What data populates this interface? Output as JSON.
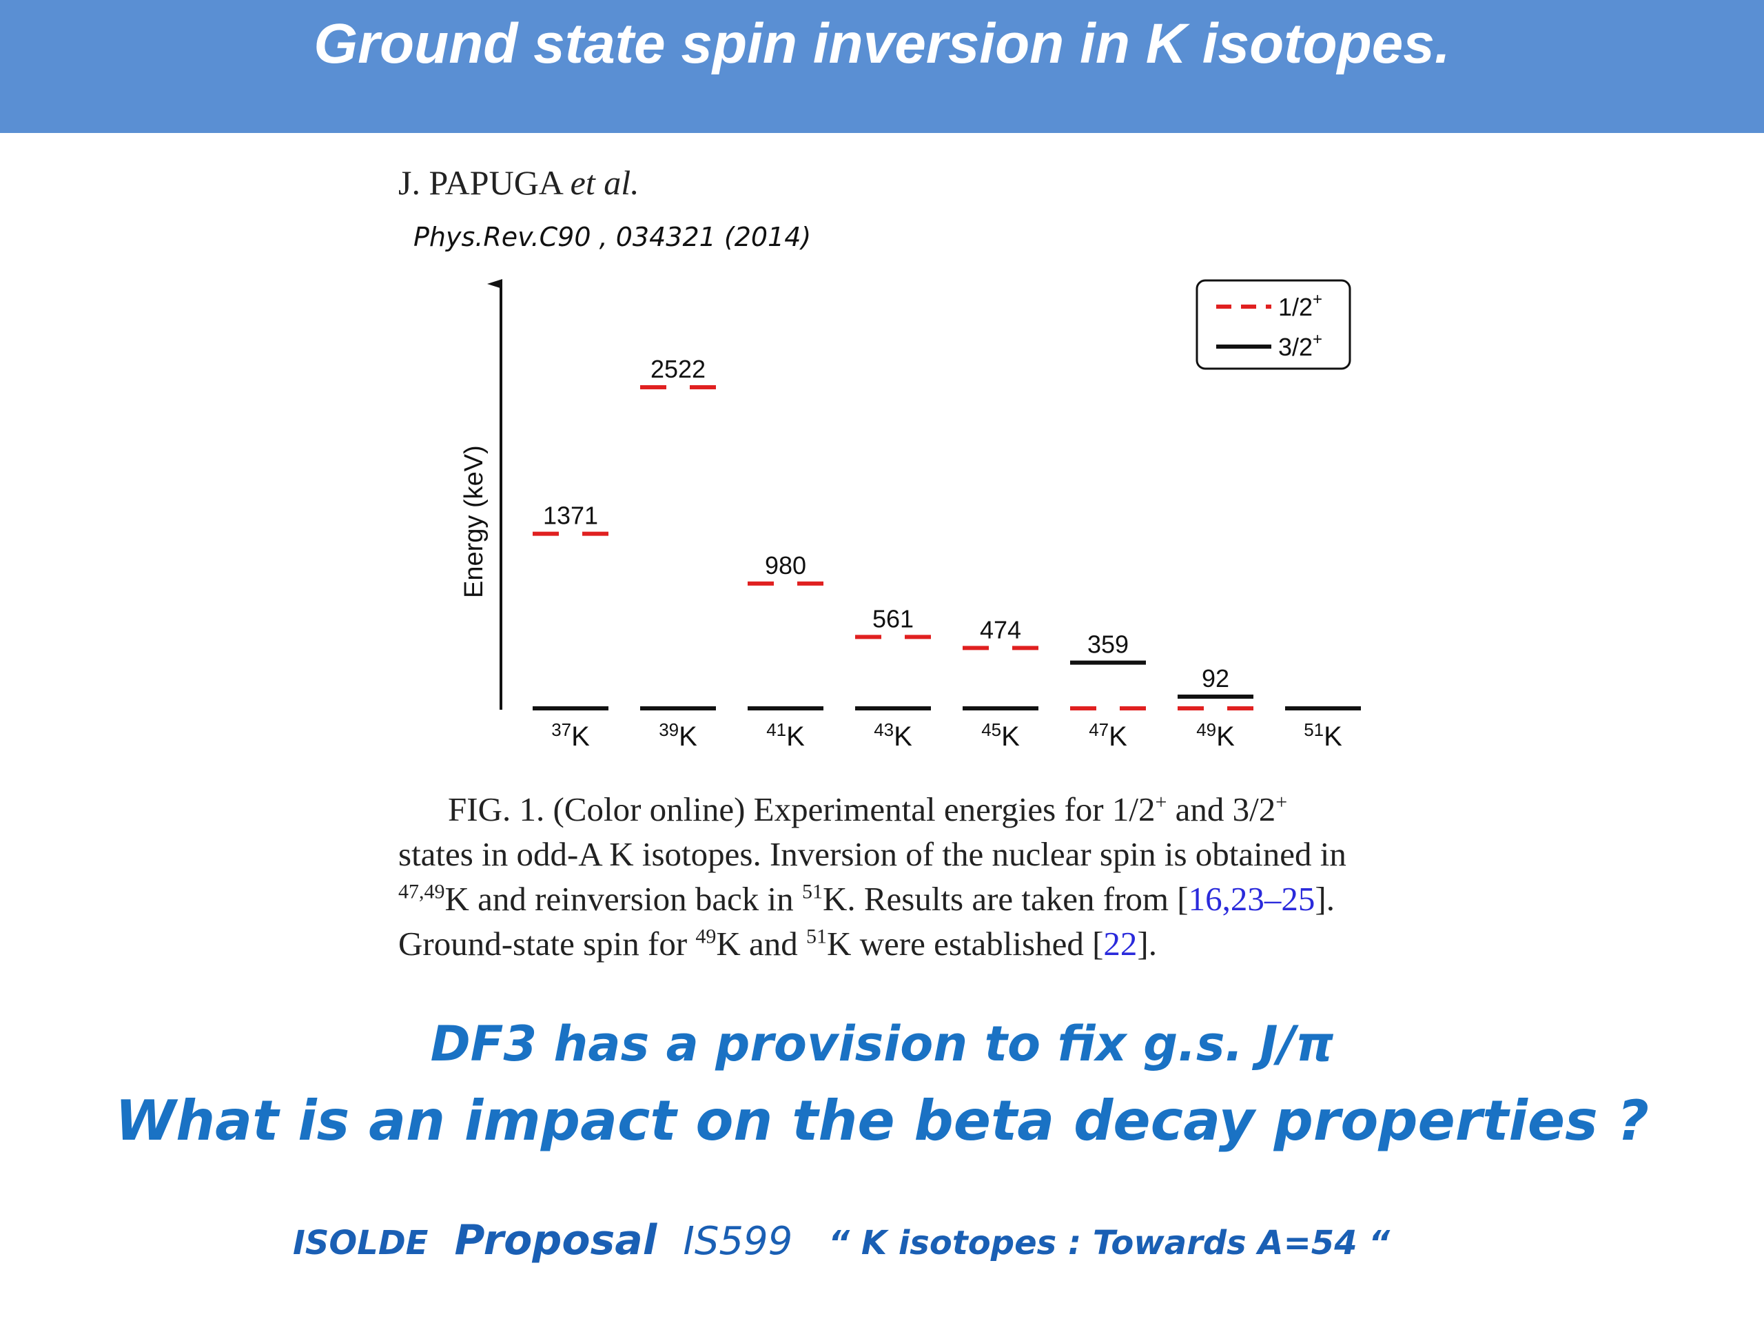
{
  "header": {
    "title": "Ground state spin inversion in K isotopes."
  },
  "reference": {
    "authors": "J. PAPUGA",
    "etal": "et al.",
    "citation": "Phys.Rev.C90 , 034321 (2014)"
  },
  "chart_data": {
    "type": "level-scheme",
    "ylabel": "Energy (keV)",
    "isotopes": [
      {
        "mass": "37",
        "symbol": "K",
        "level_12_keV": 1371,
        "level_32_keV": 0,
        "label": "1371"
      },
      {
        "mass": "39",
        "symbol": "K",
        "level_12_keV": 2522,
        "level_32_keV": 0,
        "label": "2522"
      },
      {
        "mass": "41",
        "symbol": "K",
        "level_12_keV": 980,
        "level_32_keV": 0,
        "label": "980"
      },
      {
        "mass": "43",
        "symbol": "K",
        "level_12_keV": 561,
        "level_32_keV": 0,
        "label": "561"
      },
      {
        "mass": "45",
        "symbol": "K",
        "level_12_keV": 474,
        "level_32_keV": 0,
        "label": "474"
      },
      {
        "mass": "47",
        "symbol": "K",
        "level_12_keV": 0,
        "level_32_keV": 359,
        "label": "359"
      },
      {
        "mass": "49",
        "symbol": "K",
        "level_12_keV": 0,
        "level_32_keV": 92,
        "label": "92"
      },
      {
        "mass": "51",
        "symbol": "K",
        "level_12_keV": null,
        "level_32_keV": 0,
        "label": ""
      }
    ],
    "legend": [
      {
        "label": "1/2",
        "sup": "+",
        "style": "dashed",
        "color": "#e02020"
      },
      {
        "label": "3/2",
        "sup": "+",
        "style": "solid",
        "color": "#111111"
      }
    ],
    "legend_position": "top-right"
  },
  "caption": {
    "line1_a": "FIG. 1. (Color online)  Experimental energies for 1/2",
    "line1_sup1": "+",
    "line1_b": " and 3/2",
    "line1_sup2": "+",
    "line2": "states in odd-A K isotopes. Inversion of the nuclear spin is obtained in",
    "line3_sup": "47,49",
    "line3_a": "K and reinversion back in ",
    "line3_sup2": "51",
    "line3_b": "K. Results are taken from [",
    "line3_ref": "16,23–25",
    "line3_c": "].",
    "line4_a": "Ground-state spin for ",
    "line4_sup1": "49",
    "line4_b": "K and ",
    "line4_sup2": "51",
    "line4_c": "K were established [",
    "line4_ref": "22",
    "line4_d": "]."
  },
  "questions": {
    "line1": "DF3  has a provision to fix   g.s.   J/π",
    "line2": "What is an impact on the beta decay properties ?"
  },
  "footer": {
    "isolde": "ISOLDE",
    "proposal": "Proposal",
    "code": "IS599",
    "title": "“ K  isotopes :   Towards A=54 “"
  },
  "colors": {
    "header_bg": "#5a8fd3",
    "level_12": "#e02020",
    "level_32": "#111111",
    "question_blue": "#1a72c4"
  }
}
